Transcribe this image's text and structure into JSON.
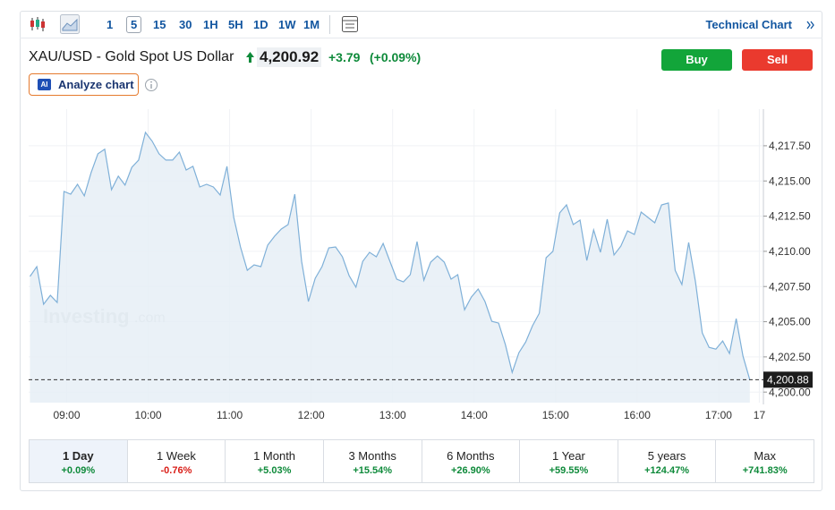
{
  "toolbar": {
    "intervals": [
      "1",
      "5",
      "15",
      "30",
      "1H",
      "5H",
      "1D",
      "1W",
      "1M"
    ],
    "selected_interval": "5",
    "technical_chart": "Technical Chart"
  },
  "header": {
    "symbol": "XAU/USD - Gold Spot US Dollar",
    "price": "4,200.92",
    "change": "+3.79",
    "change_pct": "(+0.09%)",
    "buy": "Buy",
    "sell": "Sell",
    "ai": "AI",
    "analyze": "Analyze chart"
  },
  "chart_data": {
    "type": "area",
    "watermark": [
      "Investing",
      ".com"
    ],
    "color": "#7fb0d8",
    "fill": "#e6eef6",
    "x": [
      513,
      518,
      523,
      528,
      533,
      538,
      543,
      548,
      553,
      558,
      563,
      568,
      573,
      578,
      583,
      588,
      593,
      598,
      603,
      608,
      613,
      618,
      623,
      628,
      633,
      638,
      643,
      648,
      653,
      658,
      663,
      668,
      673,
      678,
      683,
      688,
      693,
      698,
      703,
      708,
      713,
      718,
      723,
      728,
      733,
      738,
      743,
      748,
      753,
      758,
      763,
      768,
      773,
      778,
      783,
      788,
      793,
      798,
      803,
      808,
      813,
      818,
      823,
      828,
      833,
      838,
      843,
      848,
      853,
      858,
      863,
      868,
      873,
      878,
      883,
      888,
      893,
      898,
      903,
      908,
      913,
      918,
      923,
      928,
      933,
      938,
      943,
      948,
      953,
      958,
      963,
      968,
      973,
      978,
      983,
      988,
      993,
      998,
      1003,
      1008,
      1013,
      1018,
      1023,
      1028,
      1033,
      1038,
      1043
    ],
    "values": [
      4208.21,
      4208.91,
      4206.24,
      4206.87,
      4206.36,
      4214.25,
      4214.06,
      4214.76,
      4213.94,
      4215.59,
      4216.93,
      4217.25,
      4214.38,
      4215.34,
      4214.7,
      4215.97,
      4216.48,
      4218.45,
      4217.82,
      4216.93,
      4216.48,
      4216.48,
      4217.05,
      4215.78,
      4216.04,
      4214.57,
      4214.76,
      4214.57,
      4214.0,
      4216.04,
      4212.41,
      4210.31,
      4208.65,
      4209.04,
      4208.91,
      4210.44,
      4211.07,
      4211.58,
      4211.9,
      4214.06,
      4209.29,
      4206.43,
      4208.08,
      4208.91,
      4210.25,
      4210.31,
      4209.61,
      4208.27,
      4207.45,
      4209.29,
      4209.93,
      4209.61,
      4210.56,
      4209.29,
      4208.02,
      4207.83,
      4208.34,
      4210.69,
      4207.95,
      4209.23,
      4209.67,
      4209.23,
      4208.02,
      4208.34,
      4205.85,
      4206.75,
      4207.32,
      4206.43,
      4205.03,
      4204.9,
      4203.37,
      4201.4,
      4202.8,
      4203.56,
      4204.71,
      4205.6,
      4209.55,
      4209.99,
      4212.73,
      4213.3,
      4211.9,
      4212.22,
      4209.35,
      4211.52,
      4209.93,
      4212.28,
      4209.74,
      4210.37,
      4211.45,
      4211.2,
      4212.79,
      4212.41,
      4212.03,
      4213.3,
      4213.43,
      4208.65,
      4207.64,
      4210.63,
      4207.83,
      4204.2,
      4203.18,
      4203.05,
      4203.63,
      4202.74,
      4205.22,
      4202.55,
      4200.88
    ],
    "xlim": [
      512,
      1053
    ],
    "ylim": [
      4199.25,
      4220.1
    ],
    "xticks": [
      {
        "value": 540,
        "label": "09:00"
      },
      {
        "value": 600,
        "label": "10:00"
      },
      {
        "value": 660,
        "label": "11:00"
      },
      {
        "value": 720,
        "label": "12:00"
      },
      {
        "value": 780,
        "label": "13:00"
      },
      {
        "value": 840,
        "label": "14:00"
      },
      {
        "value": 900,
        "label": "15:00"
      },
      {
        "value": 960,
        "label": "16:00"
      },
      {
        "value": 1020,
        "label": "17:00"
      },
      {
        "value": 1050,
        "label": "17"
      }
    ],
    "yticks": [
      {
        "value": 4200,
        "label": "4,200.00"
      },
      {
        "value": 4202.5,
        "label": "4,202.50"
      },
      {
        "value": 4205,
        "label": "4,205.00"
      },
      {
        "value": 4207.5,
        "label": "4,207.50"
      },
      {
        "value": 4210,
        "label": "4,210.00"
      },
      {
        "value": 4212.5,
        "label": "4,212.50"
      },
      {
        "value": 4215,
        "label": "4,215.00"
      },
      {
        "value": 4217.5,
        "label": "4,217.50"
      }
    ],
    "last_price": {
      "value": 4200.88,
      "label": "4,200.88"
    },
    "grid": true
  },
  "periods": [
    {
      "label": "1 Day",
      "change": "+0.09%"
    },
    {
      "label": "1 Week",
      "change": "-0.76%"
    },
    {
      "label": "1 Month",
      "change": "+5.03%"
    },
    {
      "label": "3 Months",
      "change": "+15.54%"
    },
    {
      "label": "6 Months",
      "change": "+26.90%"
    },
    {
      "label": "1 Year",
      "change": "+59.55%"
    },
    {
      "label": "5 years",
      "change": "+124.47%"
    },
    {
      "label": "Max",
      "change": "+741.83%"
    }
  ],
  "selected_period": "1 Day"
}
